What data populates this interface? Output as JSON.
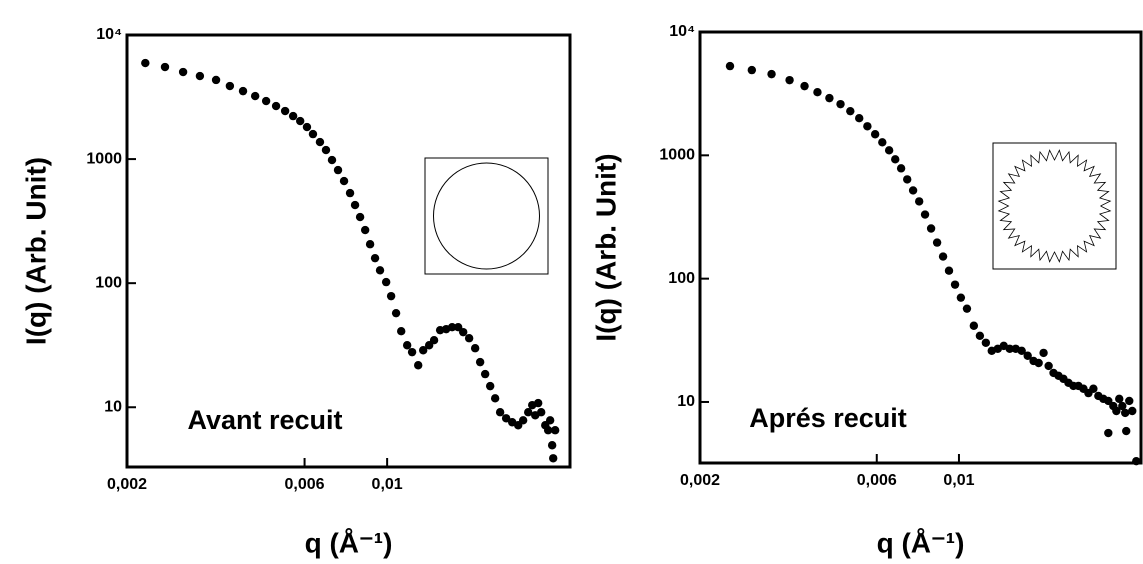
{
  "chart_data": [
    {
      "type": "scatter",
      "ylabel": "I(q) (Arb. Unit)",
      "xlabel": "q  (Å⁻¹)",
      "annotation": "Avant recuit",
      "log_x": true,
      "log_y": true,
      "color": "#000000",
      "xlim": [
        0.002,
        0.031
      ],
      "ylim": [
        3.3,
        10000
      ],
      "xticks": [
        {
          "value": 0.002,
          "label": "0,002"
        },
        {
          "value": 0.006,
          "label": "0,006"
        },
        {
          "value": 0.01,
          "label": "0,01"
        }
      ],
      "yticks": [
        10,
        100,
        1000,
        {
          "value": 10000,
          "label": "10⁴"
        }
      ],
      "x": [
        0.00224,
        0.00253,
        0.00283,
        0.00314,
        0.00347,
        0.00378,
        0.0041,
        0.00442,
        0.00473,
        0.00503,
        0.00532,
        0.00559,
        0.00584,
        0.00609,
        0.00632,
        0.0066,
        0.00685,
        0.00711,
        0.00738,
        0.00766,
        0.00795,
        0.0082,
        0.00846,
        0.00873,
        0.009,
        0.00928,
        0.00957,
        0.00994,
        0.01025,
        0.01057,
        0.01091,
        0.01132,
        0.01167,
        0.01212,
        0.0125,
        0.01297,
        0.01337,
        0.01388,
        0.01441,
        0.01495,
        0.01552,
        0.01601,
        0.01661,
        0.01724,
        0.01778,
        0.01834,
        0.01892,
        0.01951,
        0.02012,
        0.02088,
        0.02168,
        0.0225,
        0.0232,
        0.02394,
        0.02454,
        0.025,
        0.02546,
        0.02594,
        0.0266,
        0.02742,
        0.02828,
        0.02708,
        0.02776,
        0.02794
      ],
      "values": [
        5940,
        5520,
        5030,
        4670,
        4340,
        3880,
        3530,
        3220,
        2935,
        2675,
        2440,
        2220,
        2025,
        1812,
        1590,
        1371,
        1182,
        982,
        815,
        665,
        532,
        426,
        341,
        268,
        206,
        159,
        127,
        102,
        78.6,
        57.3,
        41.0,
        31.6,
        27.8,
        21.8,
        28.8,
        31.6,
        34.7,
        41.8,
        42.6,
        44.2,
        44.2,
        40.3,
        36.0,
        29.9,
        23.1,
        18.5,
        14.8,
        11.8,
        9.12,
        8.15,
        7.57,
        7.16,
        7.85,
        9.12,
        10.4,
        8.61,
        10.8,
        9.12,
        7.16,
        7.85,
        6.53,
        6.53,
        4.94,
        3.88
      ]
    },
    {
      "type": "scatter",
      "ylabel": "I(q) (Arb. Unit)",
      "xlabel": "q  (Å⁻¹)",
      "annotation": "Aprés recuit",
      "log_x": true,
      "log_y": true,
      "color": "#000000",
      "xlim": [
        0.002,
        0.031
      ],
      "ylim": [
        3.2,
        10000
      ],
      "xticks": [
        {
          "value": 0.002,
          "label": "0,002"
        },
        {
          "value": 0.006,
          "label": "0,006"
        },
        {
          "value": 0.01,
          "label": "0,01"
        }
      ],
      "yticks": [
        10,
        100,
        1000,
        {
          "value": 10000,
          "label": "10⁴"
        }
      ],
      "x": [
        0.00241,
        0.00276,
        0.00312,
        0.00349,
        0.00383,
        0.00415,
        0.00447,
        0.00479,
        0.00509,
        0.00538,
        0.00566,
        0.00594,
        0.00621,
        0.00648,
        0.00673,
        0.00698,
        0.00725,
        0.00752,
        0.00781,
        0.0081,
        0.00841,
        0.00873,
        0.00906,
        0.0094,
        0.00976,
        0.01012,
        0.01051,
        0.01097,
        0.01139,
        0.01182,
        0.01226,
        0.01273,
        0.01321,
        0.01371,
        0.01423,
        0.01477,
        0.01533,
        0.0159,
        0.01641,
        0.01692,
        0.01746,
        0.018,
        0.01857,
        0.01915,
        0.01975,
        0.02037,
        0.02101,
        0.02168,
        0.02236,
        0.02306,
        0.02378,
        0.02454,
        0.0253,
        0.0261,
        0.0266,
        0.02708,
        0.0276,
        0.0281,
        0.02882,
        0.02936,
        0.0253,
        0.02828,
        0.0301
      ],
      "values": [
        5290,
        4910,
        4555,
        4070,
        3640,
        3250,
        2910,
        2600,
        2280,
        2000,
        1720,
        1482,
        1275,
        1098,
        928,
        784,
        638,
        519,
        423,
        331,
        255,
        196,
        151,
        116,
        89.4,
        70.1,
        57.1,
        41.5,
        34.4,
        30.2,
        26.0,
        27.0,
        28.5,
        27.0,
        27.0,
        26.0,
        23.7,
        21.5,
        20.7,
        25.0,
        19.6,
        17.2,
        16.3,
        15.4,
        14.3,
        13.5,
        13.5,
        12.8,
        11.8,
        12.8,
        11.2,
        10.6,
        10.2,
        9.27,
        8.45,
        10.6,
        9.27,
        8.15,
        10.2,
        8.45,
        5.6,
        5.81,
        3.31
      ]
    }
  ]
}
